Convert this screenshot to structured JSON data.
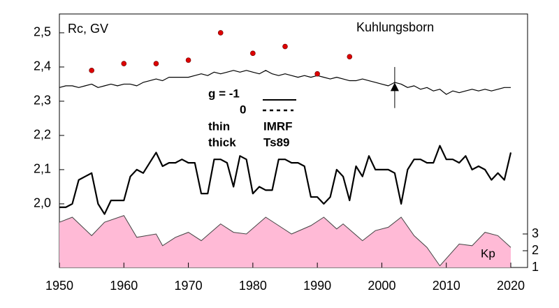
{
  "chart_data": {
    "type": "line",
    "y_label": "Rc, GV",
    "annotation": "Kuhlungsborn",
    "legend": {
      "g_label": "g  = -1",
      "g0": "0",
      "thin": "thin",
      "thin_model": "IMRF",
      "thick": "thick",
      "thick_model": "Ts89"
    },
    "xlim": [
      1950,
      2022.6
    ],
    "xticks": [
      1950,
      1960,
      1970,
      1980,
      1990,
      2000,
      2010,
      2020
    ],
    "ylim": [
      1.814,
      2.555
    ],
    "yticks": [
      {
        "value": 2.0,
        "label": "2,0"
      },
      {
        "value": 2.1,
        "label": "2,1"
      },
      {
        "value": 2.2,
        "label": "2,2"
      },
      {
        "value": 2.3,
        "label": "2,3"
      },
      {
        "value": 2.4,
        "label": "2,4"
      },
      {
        "value": 2.5,
        "label": "2,5"
      }
    ],
    "y2lim": [
      1,
      16.125
    ],
    "y2ticks": [
      1,
      2,
      3
    ],
    "x": [
      1950,
      1951,
      1952,
      1953,
      1954,
      1955,
      1956,
      1957,
      1958,
      1959,
      1960,
      1961,
      1962,
      1963,
      1964,
      1965,
      1966,
      1967,
      1968,
      1969,
      1970,
      1971,
      1972,
      1973,
      1974,
      1975,
      1976,
      1977,
      1978,
      1979,
      1980,
      1981,
      1982,
      1983,
      1984,
      1985,
      1986,
      1987,
      1988,
      1989,
      1990,
      1991,
      1992,
      1993,
      1994,
      1995,
      1996,
      1997,
      1998,
      1999,
      2000,
      2001,
      2002,
      2003,
      2004,
      2005,
      2006,
      2007,
      2008,
      2009,
      2010,
      2011,
      2012,
      2013,
      2014,
      2015,
      2016,
      2017,
      2018,
      2019,
      2020
    ],
    "series": [
      {
        "color": "#000000",
        "line_width": 1.2,
        "values": [
          2.34,
          2.345,
          2.345,
          2.34,
          2.345,
          2.35,
          2.34,
          2.345,
          2.35,
          2.345,
          2.35,
          2.35,
          2.345,
          2.355,
          2.36,
          2.365,
          2.36,
          2.37,
          2.37,
          2.37,
          2.37,
          2.375,
          2.38,
          2.375,
          2.385,
          2.38,
          2.385,
          2.39,
          2.385,
          2.39,
          2.385,
          2.38,
          2.39,
          2.38,
          2.375,
          2.38,
          2.375,
          2.37,
          2.375,
          2.37,
          2.375,
          2.37,
          2.365,
          2.37,
          2.365,
          2.36,
          2.36,
          2.365,
          2.36,
          2.355,
          2.35,
          2.345,
          2.355,
          2.35,
          2.34,
          2.345,
          2.335,
          2.34,
          2.33,
          2.335,
          2.32,
          2.33,
          2.325,
          2.33,
          2.335,
          2.33,
          2.335,
          2.33,
          2.335,
          2.34,
          2.34
        ]
      },
      {
        "color": "#000000",
        "line_width": 2.2,
        "values": [
          1.99,
          1.99,
          2.0,
          2.07,
          2.08,
          2.09,
          2.0,
          1.97,
          2.01,
          2.01,
          2.01,
          2.08,
          2.1,
          2.09,
          2.12,
          2.15,
          2.11,
          2.12,
          2.12,
          2.13,
          2.12,
          2.12,
          2.03,
          2.03,
          2.13,
          2.13,
          2.12,
          2.05,
          2.14,
          2.13,
          2.03,
          2.05,
          2.04,
          2.04,
          2.13,
          2.13,
          2.12,
          2.12,
          2.11,
          2.02,
          2.02,
          2.0,
          2.02,
          2.1,
          2.08,
          2.01,
          2.11,
          2.08,
          2.14,
          2.1,
          2.1,
          2.1,
          2.09,
          2.0,
          2.1,
          2.13,
          2.13,
          2.12,
          2.12,
          2.17,
          2.13,
          2.13,
          2.12,
          2.14,
          2.1,
          2.11,
          2.1,
          2.07,
          2.09,
          2.07,
          2.15
        ]
      }
    ],
    "kp": {
      "name": "Kp",
      "axis": "y2",
      "color": "#ffbad6",
      "edge": "#444444",
      "x": [
        1950,
        1952,
        1955,
        1957,
        1960,
        1962,
        1965,
        1966,
        1968,
        1970,
        1972,
        1975,
        1977,
        1979,
        1982,
        1984,
        1986,
        1989,
        1991,
        1993,
        1994,
        1997,
        1999,
        2001,
        2003,
        2005,
        2007,
        2009,
        2012,
        2014,
        2016,
        2018,
        2020
      ],
      "values": [
        3.7,
        4.0,
        2.9,
        3.7,
        4.1,
        2.8,
        3.0,
        2.3,
        2.8,
        3.1,
        2.6,
        3.6,
        3.1,
        3.0,
        4.0,
        3.5,
        3.0,
        3.5,
        4.0,
        3.3,
        3.6,
        2.6,
        3.2,
        3.4,
        4.0,
        2.9,
        2.2,
        1.1,
        2.4,
        2.3,
        3.1,
        2.9,
        2.2
      ]
    },
    "points": {
      "color": "#dd0000",
      "x": [
        1955,
        1960,
        1965,
        1970,
        1975,
        1980,
        1985,
        1990,
        1995
      ],
      "values": [
        2.39,
        2.41,
        2.41,
        2.42,
        2.5,
        2.44,
        2.46,
        2.38,
        2.43
      ]
    },
    "marker": {
      "x": 2002,
      "y": 2.34,
      "error": 0.06
    }
  }
}
